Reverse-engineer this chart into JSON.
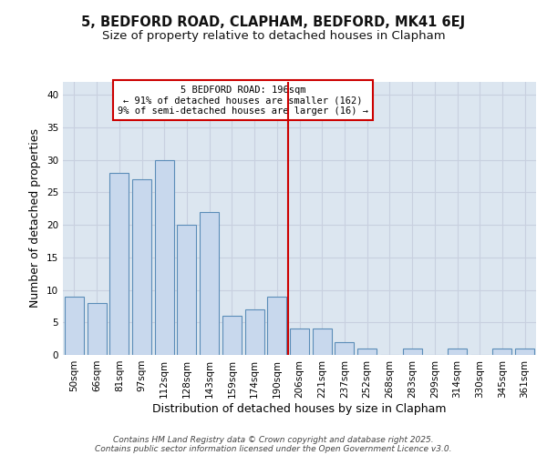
{
  "title1": "5, BEDFORD ROAD, CLAPHAM, BEDFORD, MK41 6EJ",
  "title2": "Size of property relative to detached houses in Clapham",
  "categories": [
    "50sqm",
    "66sqm",
    "81sqm",
    "97sqm",
    "112sqm",
    "128sqm",
    "143sqm",
    "159sqm",
    "174sqm",
    "190sqm",
    "206sqm",
    "221sqm",
    "237sqm",
    "252sqm",
    "268sqm",
    "283sqm",
    "299sqm",
    "314sqm",
    "330sqm",
    "345sqm",
    "361sqm"
  ],
  "values": [
    9,
    8,
    28,
    27,
    30,
    20,
    22,
    6,
    7,
    9,
    4,
    4,
    2,
    1,
    0,
    1,
    0,
    1,
    0,
    1,
    1
  ],
  "bar_color": "#c8d8ed",
  "bar_edge_color": "#5b8db8",
  "vline_x_index": 9,
  "vline_color": "#cc0000",
  "annotation_text": "5 BEDFORD ROAD: 196sqm\n← 91% of detached houses are smaller (162)\n9% of semi-detached houses are larger (16) →",
  "annotation_box_color": "white",
  "annotation_box_edge_color": "#cc0000",
  "xlabel": "Distribution of detached houses by size in Clapham",
  "ylabel": "Number of detached properties",
  "ylim": [
    0,
    42
  ],
  "yticks": [
    0,
    5,
    10,
    15,
    20,
    25,
    30,
    35,
    40
  ],
  "grid_color": "#c8d0df",
  "bg_color": "#dce6f0",
  "fig_bg_color": "#ffffff",
  "footer_line1": "Contains HM Land Registry data © Crown copyright and database right 2025.",
  "footer_line2": "Contains public sector information licensed under the Open Government Licence v3.0.",
  "title1_fontsize": 10.5,
  "title2_fontsize": 9.5,
  "axis_label_fontsize": 9,
  "tick_fontsize": 7.5,
  "footer_fontsize": 6.5,
  "ann_fontsize": 7.5
}
